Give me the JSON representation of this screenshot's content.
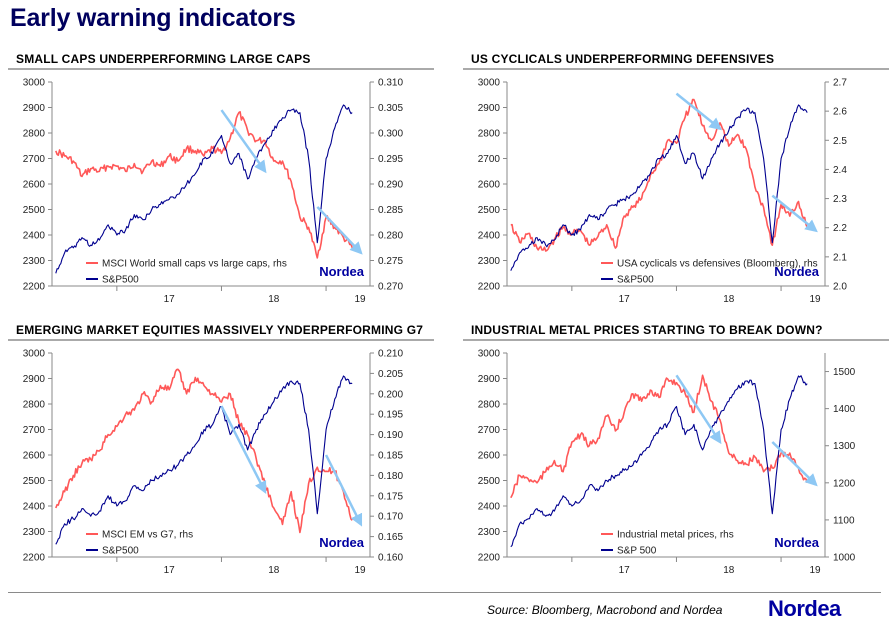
{
  "page_title": "Early warning indicators",
  "source": "Source: Bloomberg, Macrobond and Nordea",
  "logo": "Nordea",
  "colors": {
    "spx": "#00008f",
    "red": "#ff5858",
    "arrow": "#8ec8f4",
    "brand": "#0000a0",
    "title": "#00005e"
  },
  "chart_data": [
    {
      "type": "line",
      "title": "SMALL CAPS UNDERPERFORMING LARGE CAPS",
      "x_ticks": [
        "17",
        "18",
        "19"
      ],
      "y_left": {
        "ticks": [
          2200,
          2300,
          2400,
          2500,
          2600,
          2700,
          2800,
          2900,
          3000
        ],
        "lim": [
          2200,
          3000
        ]
      },
      "y_right": {
        "ticks": [
          "0.270",
          "0.275",
          "0.280",
          "0.285",
          "0.290",
          "0.295",
          "0.300",
          "0.305",
          "0.310"
        ],
        "lim": [
          0.27,
          0.31
        ]
      },
      "legend": [
        "MSCI World small caps vs large caps, rhs",
        "S&P500"
      ],
      "watermark": "Nordea",
      "series": [
        {
          "name": "MSCI World small caps vs large caps, rhs",
          "axis": "right",
          "x": [
            "2016-06",
            "2016-07",
            "2016-08",
            "2016-09",
            "2016-10",
            "2016-11",
            "2016-12",
            "2017-01",
            "2017-02",
            "2017-03",
            "2017-04",
            "2017-05",
            "2017-06",
            "2017-07",
            "2017-08",
            "2017-09",
            "2017-10",
            "2017-11",
            "2017-12",
            "2018-01",
            "2018-02",
            "2018-03",
            "2018-04",
            "2018-05",
            "2018-06",
            "2018-07",
            "2018-08",
            "2018-09",
            "2018-10",
            "2018-11",
            "2018-12",
            "2019-01",
            "2019-02",
            "2019-03",
            "2019-04"
          ],
          "values": [
            0.2965,
            0.2955,
            0.2945,
            0.2915,
            0.293,
            0.2925,
            0.2935,
            0.2935,
            0.2925,
            0.294,
            0.2925,
            0.2945,
            0.2935,
            0.2955,
            0.2945,
            0.297,
            0.2965,
            0.2955,
            0.297,
            0.296,
            0.299,
            0.304,
            0.3005,
            0.2985,
            0.2985,
            0.2945,
            0.2945,
            0.2905,
            0.2835,
            0.2815,
            0.2755,
            0.2835,
            0.2815,
            0.2795,
            0.2775
          ]
        },
        {
          "name": "S&P500",
          "axis": "left",
          "x": [
            "2016-06",
            "2016-07",
            "2016-08",
            "2016-09",
            "2016-10",
            "2016-11",
            "2016-12",
            "2017-01",
            "2017-02",
            "2017-03",
            "2017-04",
            "2017-05",
            "2017-06",
            "2017-07",
            "2017-08",
            "2017-09",
            "2017-10",
            "2017-11",
            "2017-12",
            "2018-01",
            "2018-02",
            "2018-03",
            "2018-04",
            "2018-05",
            "2018-06",
            "2018-07",
            "2018-08",
            "2018-09",
            "2018-10",
            "2018-11",
            "2018-12",
            "2019-01",
            "2019-02",
            "2019-03",
            "2019-04"
          ],
          "values": [
            2250,
            2330,
            2350,
            2390,
            2360,
            2380,
            2440,
            2400,
            2420,
            2480,
            2460,
            2500,
            2520,
            2540,
            2560,
            2600,
            2640,
            2700,
            2720,
            2790,
            2680,
            2720,
            2620,
            2700,
            2760,
            2810,
            2860,
            2890,
            2880,
            2700,
            2370,
            2700,
            2820,
            2910,
            2880
          ]
        }
      ],
      "arrows": [
        {
          "from": [
            "2018-01",
            0.3045
          ],
          "to": [
            "2018-06",
            0.2925
          ]
        },
        {
          "from": [
            "2018-12",
            0.2855
          ],
          "to": [
            "2019-05",
            0.2765
          ]
        }
      ]
    },
    {
      "type": "line",
      "title": "US CYCLICALS UNDERPERFORMING DEFENSIVES",
      "x_ticks": [
        "17",
        "18",
        "19"
      ],
      "y_left": {
        "ticks": [
          2200,
          2300,
          2400,
          2500,
          2600,
          2700,
          2800,
          2900,
          3000
        ],
        "lim": [
          2200,
          3000
        ]
      },
      "y_right": {
        "ticks": [
          "2.0",
          "2.1",
          "2.2",
          "2.3",
          "2.4",
          "2.5",
          "2.6",
          "2.7"
        ],
        "lim": [
          2.0,
          2.7
        ]
      },
      "legend": [
        "USA cyclicals vs defensives (Bloomberg), rhs",
        "S&P500"
      ],
      "watermark": "Nordea",
      "series": [
        {
          "name": "USA cyclicals vs defensives (Bloomberg), rhs",
          "axis": "right",
          "x": [
            "2016-06",
            "2016-07",
            "2016-08",
            "2016-09",
            "2016-10",
            "2016-11",
            "2016-12",
            "2017-01",
            "2017-02",
            "2017-03",
            "2017-04",
            "2017-05",
            "2017-06",
            "2017-07",
            "2017-08",
            "2017-09",
            "2017-10",
            "2017-11",
            "2017-12",
            "2018-01",
            "2018-02",
            "2018-03",
            "2018-04",
            "2018-05",
            "2018-06",
            "2018-07",
            "2018-08",
            "2018-09",
            "2018-10",
            "2018-11",
            "2018-12",
            "2019-01",
            "2019-02",
            "2019-03",
            "2019-04"
          ],
          "values": [
            2.21,
            2.15,
            2.18,
            2.13,
            2.12,
            2.16,
            2.2,
            2.18,
            2.19,
            2.14,
            2.17,
            2.21,
            2.13,
            2.24,
            2.27,
            2.3,
            2.38,
            2.42,
            2.5,
            2.49,
            2.58,
            2.64,
            2.55,
            2.5,
            2.56,
            2.48,
            2.52,
            2.47,
            2.34,
            2.27,
            2.14,
            2.28,
            2.24,
            2.29,
            2.2
          ]
        },
        {
          "name": "S&P500",
          "axis": "left",
          "x": [
            "2016-06",
            "2016-07",
            "2016-08",
            "2016-09",
            "2016-10",
            "2016-11",
            "2016-12",
            "2017-01",
            "2017-02",
            "2017-03",
            "2017-04",
            "2017-05",
            "2017-06",
            "2017-07",
            "2017-08",
            "2017-09",
            "2017-10",
            "2017-11",
            "2017-12",
            "2018-01",
            "2018-02",
            "2018-03",
            "2018-04",
            "2018-05",
            "2018-06",
            "2018-07",
            "2018-08",
            "2018-09",
            "2018-10",
            "2018-11",
            "2018-12",
            "2019-01",
            "2019-02",
            "2019-03",
            "2019-04"
          ],
          "values": [
            2260,
            2330,
            2350,
            2390,
            2360,
            2380,
            2440,
            2400,
            2420,
            2480,
            2460,
            2500,
            2520,
            2540,
            2560,
            2600,
            2640,
            2700,
            2720,
            2790,
            2680,
            2720,
            2620,
            2700,
            2760,
            2810,
            2860,
            2890,
            2880,
            2700,
            2370,
            2700,
            2820,
            2910,
            2880
          ]
        }
      ],
      "arrows": [
        {
          "from": [
            "2018-01",
            2.66
          ],
          "to": [
            "2018-06",
            2.54
          ]
        },
        {
          "from": [
            "2018-12",
            2.31
          ],
          "to": [
            "2019-05",
            2.19
          ]
        }
      ]
    },
    {
      "type": "line",
      "title": "EMERGING MARKET EQUITIES MASSIVELY YNDERPERFORMING G7",
      "x_ticks": [
        "17",
        "18",
        "19"
      ],
      "y_left": {
        "ticks": [
          2200,
          2300,
          2400,
          2500,
          2600,
          2700,
          2800,
          2900,
          3000
        ],
        "lim": [
          2200,
          3000
        ]
      },
      "y_right": {
        "ticks": [
          "0.160",
          "0.165",
          "0.170",
          "0.175",
          "0.180",
          "0.185",
          "0.190",
          "0.195",
          "0.200",
          "0.205",
          "0.210"
        ],
        "lim": [
          0.16,
          0.21
        ]
      },
      "legend": [
        "MSCI EM vs G7, rhs",
        "S&P500"
      ],
      "watermark": "Nordea",
      "series": [
        {
          "name": "MSCI EM vs G7, rhs",
          "axis": "right",
          "x": [
            "2016-06",
            "2016-07",
            "2016-08",
            "2016-09",
            "2016-10",
            "2016-11",
            "2016-12",
            "2017-01",
            "2017-02",
            "2017-03",
            "2017-04",
            "2017-05",
            "2017-06",
            "2017-07",
            "2017-08",
            "2017-09",
            "2017-10",
            "2017-11",
            "2017-12",
            "2018-01",
            "2018-02",
            "2018-03",
            "2018-04",
            "2018-05",
            "2018-06",
            "2018-07",
            "2018-08",
            "2018-09",
            "2018-10",
            "2018-11",
            "2018-12",
            "2019-01",
            "2019-02",
            "2019-03",
            "2019-04"
          ],
          "values": [
            0.172,
            0.176,
            0.18,
            0.183,
            0.184,
            0.186,
            0.19,
            0.192,
            0.195,
            0.196,
            0.2,
            0.198,
            0.202,
            0.201,
            0.206,
            0.2,
            0.204,
            0.202,
            0.2,
            0.198,
            0.2,
            0.193,
            0.19,
            0.184,
            0.178,
            0.172,
            0.168,
            0.176,
            0.166,
            0.178,
            0.182,
            0.181,
            0.181,
            0.176,
            0.169
          ]
        },
        {
          "name": "S&P500",
          "axis": "left",
          "x": [
            "2016-06",
            "2016-07",
            "2016-08",
            "2016-09",
            "2016-10",
            "2016-11",
            "2016-12",
            "2017-01",
            "2017-02",
            "2017-03",
            "2017-04",
            "2017-05",
            "2017-06",
            "2017-07",
            "2017-08",
            "2017-09",
            "2017-10",
            "2017-11",
            "2017-12",
            "2018-01",
            "2018-02",
            "2018-03",
            "2018-04",
            "2018-05",
            "2018-06",
            "2018-07",
            "2018-08",
            "2018-09",
            "2018-10",
            "2018-11",
            "2018-12",
            "2019-01",
            "2019-02",
            "2019-03",
            "2019-04"
          ],
          "values": [
            2250,
            2330,
            2350,
            2390,
            2360,
            2380,
            2440,
            2400,
            2420,
            2480,
            2460,
            2500,
            2520,
            2540,
            2560,
            2600,
            2640,
            2700,
            2720,
            2790,
            2680,
            2720,
            2620,
            2700,
            2760,
            2810,
            2860,
            2890,
            2880,
            2700,
            2370,
            2700,
            2820,
            2910,
            2880
          ]
        }
      ],
      "arrows": [
        {
          "from": [
            "2018-01",
            0.197
          ],
          "to": [
            "2018-06",
            0.176
          ]
        },
        {
          "from": [
            "2019-01",
            0.185
          ],
          "to": [
            "2019-05",
            0.168
          ]
        }
      ]
    },
    {
      "type": "line",
      "title": "INDUSTRIAL METAL PRICES STARTING TO BREAK DOWN?",
      "x_ticks": [
        "17",
        "18",
        "19"
      ],
      "y_left": {
        "ticks": [
          2200,
          2300,
          2400,
          2500,
          2600,
          2700,
          2800,
          2900,
          3000
        ],
        "lim": [
          2200,
          3000
        ]
      },
      "y_right": {
        "ticks": [
          "1000",
          "1100",
          "1200",
          "1300",
          "1400",
          "1500"
        ],
        "lim": [
          1000,
          1550
        ]
      },
      "legend": [
        "Industrial metal prices, rhs",
        "S&P 500"
      ],
      "watermark": "Nordea",
      "series": [
        {
          "name": "Industrial metal prices, rhs",
          "axis": "right",
          "x": [
            "2016-06",
            "2016-07",
            "2016-08",
            "2016-09",
            "2016-10",
            "2016-11",
            "2016-12",
            "2017-01",
            "2017-02",
            "2017-03",
            "2017-04",
            "2017-05",
            "2017-06",
            "2017-07",
            "2017-08",
            "2017-09",
            "2017-10",
            "2017-11",
            "2017-12",
            "2018-01",
            "2018-02",
            "2018-03",
            "2018-04",
            "2018-05",
            "2018-06",
            "2018-07",
            "2018-08",
            "2018-09",
            "2018-10",
            "2018-11",
            "2018-12",
            "2019-01",
            "2019-02",
            "2019-03",
            "2019-04"
          ],
          "values": [
            1160,
            1220,
            1210,
            1200,
            1230,
            1260,
            1230,
            1310,
            1330,
            1300,
            1320,
            1380,
            1340,
            1390,
            1440,
            1420,
            1450,
            1430,
            1480,
            1470,
            1440,
            1390,
            1490,
            1420,
            1370,
            1280,
            1260,
            1250,
            1270,
            1230,
            1240,
            1280,
            1280,
            1240,
            1200
          ]
        },
        {
          "name": "S&P 500",
          "axis": "left",
          "x": [
            "2016-06",
            "2016-07",
            "2016-08",
            "2016-09",
            "2016-10",
            "2016-11",
            "2016-12",
            "2017-01",
            "2017-02",
            "2017-03",
            "2017-04",
            "2017-05",
            "2017-06",
            "2017-07",
            "2017-08",
            "2017-09",
            "2017-10",
            "2017-11",
            "2017-12",
            "2018-01",
            "2018-02",
            "2018-03",
            "2018-04",
            "2018-05",
            "2018-06",
            "2018-07",
            "2018-08",
            "2018-09",
            "2018-10",
            "2018-11",
            "2018-12",
            "2019-01",
            "2019-02",
            "2019-03",
            "2019-04"
          ],
          "values": [
            2240,
            2330,
            2350,
            2390,
            2360,
            2380,
            2440,
            2400,
            2420,
            2480,
            2460,
            2500,
            2520,
            2540,
            2560,
            2600,
            2640,
            2700,
            2720,
            2790,
            2680,
            2720,
            2620,
            2700,
            2760,
            2810,
            2860,
            2890,
            2880,
            2700,
            2370,
            2700,
            2820,
            2910,
            2880
          ]
        }
      ],
      "arrows": [
        {
          "from": [
            "2018-01",
            1490
          ],
          "to": [
            "2018-06",
            1310
          ]
        },
        {
          "from": [
            "2018-12",
            1310
          ],
          "to": [
            "2019-05",
            1195
          ]
        }
      ]
    }
  ]
}
